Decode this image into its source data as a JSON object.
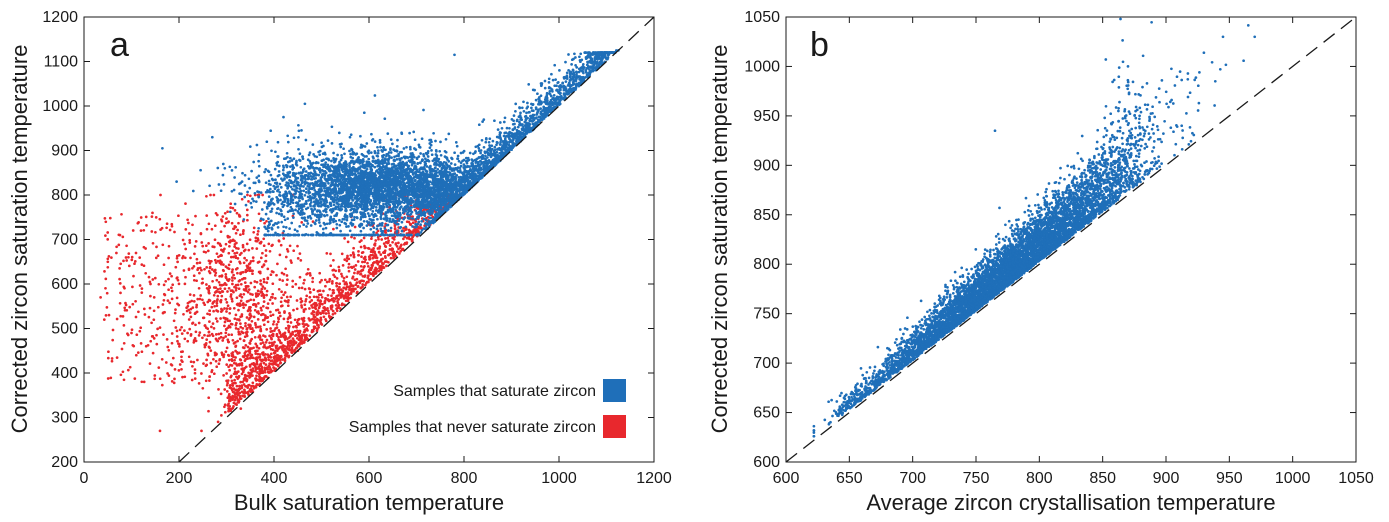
{
  "chart_data": [
    {
      "panel": "a",
      "type": "scatter",
      "xlabel": "Bulk saturation temperature",
      "ylabel": "Corrected zircon saturation temperature",
      "xlim": [
        0,
        1200
      ],
      "ylim": [
        200,
        1200
      ],
      "xticks": [
        0,
        200,
        400,
        600,
        800,
        1000,
        1200
      ],
      "yticks": [
        200,
        300,
        400,
        500,
        600,
        700,
        800,
        900,
        1000,
        1100,
        1200
      ],
      "grid": false,
      "reference_line": {
        "style": "dashed",
        "x": [
          200,
          1200
        ],
        "y": [
          200,
          1200
        ]
      },
      "legend_position": "bottom-right",
      "series": [
        {
          "name": "Samples that saturate zircon",
          "color": "#1f6fb9",
          "distribution": {
            "core_center": [
              620,
              820
            ],
            "core_spread": [
              130,
              45
            ],
            "x_range": [
              150,
              1130
            ],
            "y_range": [
              700,
              1120
            ],
            "constraint": "y >= x"
          },
          "points": [
            [
              165,
              905
            ],
            [
              270,
              930
            ],
            [
              195,
              830
            ],
            [
              465,
              1005
            ],
            [
              780,
              1115
            ],
            [
              1010,
              1045
            ],
            [
              1125,
              1125
            ],
            [
              420,
              975
            ],
            [
              590,
              985
            ],
            [
              880,
              950
            ]
          ]
        },
        {
          "name": "Samples that never saturate zircon",
          "color": "#e8282d",
          "distribution": {
            "center": [
              420,
              560
            ],
            "x_range": [
              30,
              900
            ],
            "y_range": [
              270,
              800
            ],
            "constraint": "y >= x, mostly y < 760"
          },
          "points": [
            [
              35,
              570
            ],
            [
              50,
              650
            ],
            [
              100,
              490
            ],
            [
              110,
              440
            ],
            [
              160,
              270
            ],
            [
              140,
              600
            ],
            [
              120,
              720
            ],
            [
              330,
              320
            ],
            [
              450,
              450
            ],
            [
              600,
              610
            ]
          ]
        }
      ]
    },
    {
      "panel": "b",
      "type": "scatter",
      "xlabel": "Average zircon crystallisation temperature",
      "ylabel": "Corrected zircon saturation temperature",
      "xlim": [
        600,
        1050
      ],
      "ylim": [
        600,
        1050
      ],
      "xticks": [
        600,
        650,
        700,
        750,
        800,
        850,
        900,
        950,
        1000,
        1050
      ],
      "yticks": [
        600,
        650,
        700,
        750,
        800,
        850,
        900,
        950,
        1000,
        1050
      ],
      "grid": false,
      "reference_line": {
        "style": "dashed",
        "x": [
          600,
          1050
        ],
        "y": [
          600,
          1050
        ]
      },
      "series": [
        {
          "color": "#1f6fb9",
          "distribution": {
            "trend": "y ≈ 1.08·x − 45",
            "x_range": [
              620,
              970
            ],
            "y_range": [
              630,
              1050
            ],
            "constraint": "y >= x"
          },
          "points": [
            [
              622,
              632
            ],
            [
              650,
              660
            ],
            [
              700,
              720
            ],
            [
              750,
              770
            ],
            [
              800,
              830
            ],
            [
              850,
              890
            ],
            [
              870,
              1000
            ],
            [
              945,
              1030
            ],
            [
              970,
              1030
            ],
            [
              765,
              935
            ]
          ]
        }
      ]
    }
  ],
  "legend": [
    {
      "label": "Samples that saturate zircon",
      "color": "#1f6fb9"
    },
    {
      "label": "Samples that never saturate zircon",
      "color": "#e8282d"
    }
  ]
}
